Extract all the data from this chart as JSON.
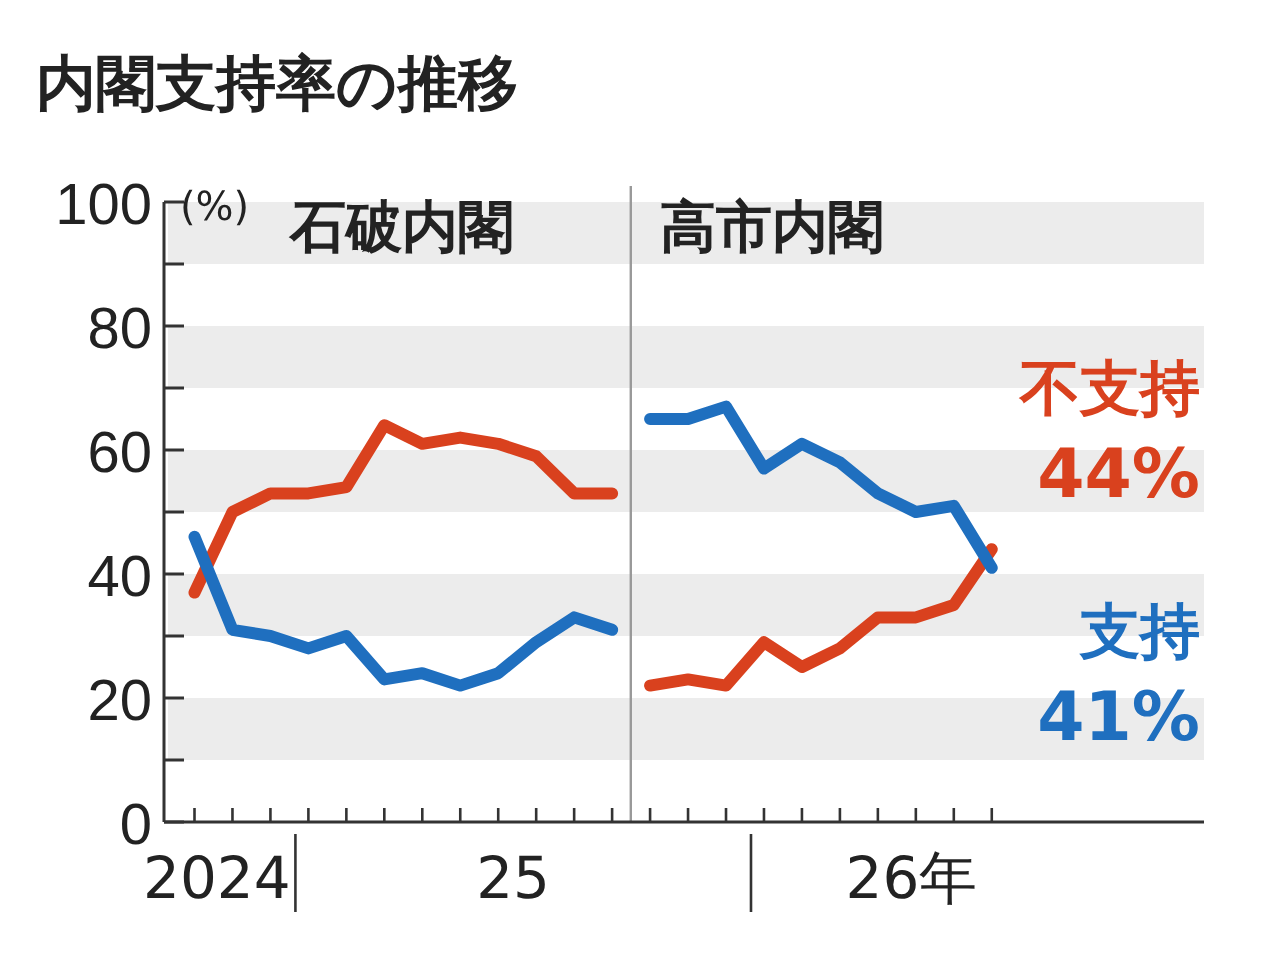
{
  "chart_data": {
    "type": "line",
    "title": "内閣支持率の推移",
    "ylabel": "(%)",
    "annotations": [
      "石破内閣",
      "高市内閣"
    ],
    "x": [
      "2024-10",
      "2024-11",
      "2024-12",
      "2025-01",
      "2025-02",
      "2025-03",
      "2025-04",
      "2025-05",
      "2025-06",
      "2025-07",
      "2025-08",
      "2025-09",
      "2025-09-16",
      "2025-10",
      "2025-11",
      "2025-12",
      "2026-01",
      "2026-02",
      "2026-03",
      "2026-04",
      "2026-05",
      "2026-06",
      "2026-07"
    ],
    "series": [
      {
        "name": "不支持",
        "color": "#d9411e",
        "values": [
          37,
          50,
          53,
          53,
          54,
          64,
          61,
          62,
          61,
          59,
          53,
          53,
          null,
          22,
          23,
          22,
          29,
          25,
          28,
          33,
          33,
          35,
          44
        ],
        "value_labels": [
          null,
          null,
          null,
          null,
          null,
          null,
          null,
          null,
          null,
          null,
          null,
          null,
          null,
          null,
          null,
          null,
          null,
          null,
          null,
          null,
          null,
          null,
          "44%"
        ]
      },
      {
        "name": "支持",
        "color": "#1f6fbf",
        "values": [
          46,
          31,
          30,
          28,
          30,
          23,
          24,
          22,
          24,
          29,
          33,
          31,
          null,
          65,
          65,
          67,
          57,
          61,
          58,
          53,
          50,
          51,
          41
        ],
        "value_labels": [
          null,
          null,
          null,
          null,
          null,
          null,
          null,
          null,
          null,
          null,
          null,
          null,
          null,
          null,
          null,
          null,
          null,
          null,
          null,
          null,
          null,
          null,
          "41%"
        ]
      }
    ],
    "xlim": [
      "2024-09-07",
      "2026-12-19"
    ],
    "xticks": [
      {
        "value": "2024-10-19",
        "label": "2024"
      },
      {
        "value": "2025-06-13",
        "label": "25"
      },
      {
        "value": "2026-04-28",
        "label": "26年"
      }
    ],
    "ylim": [
      0,
      100
    ],
    "yticks": [
      0,
      {
        "value": 10,
        "label": null
      },
      20,
      {
        "value": 30,
        "label": null
      },
      40,
      {
        "value": 50,
        "label": null
      },
      60,
      {
        "value": 70,
        "label": null
      },
      80,
      {
        "value": 90,
        "label": null
      },
      100
    ],
    "ref_lines": [
      {
        "axis": "x",
        "value": "2025-09-16",
        "color": "#999999"
      }
    ],
    "bands": [
      {
        "axis": "y",
        "from": 90,
        "to": 100,
        "color": "#ececec"
      },
      {
        "axis": "y",
        "from": 70,
        "to": 80,
        "color": "#ececec"
      },
      {
        "axis": "y",
        "from": 50,
        "to": 60,
        "color": "#ececec"
      },
      {
        "axis": "y",
        "from": 30,
        "to": 40,
        "color": "#ececec"
      },
      {
        "axis": "y",
        "from": 10,
        "to": 20,
        "color": "#ececec"
      }
    ]
  }
}
